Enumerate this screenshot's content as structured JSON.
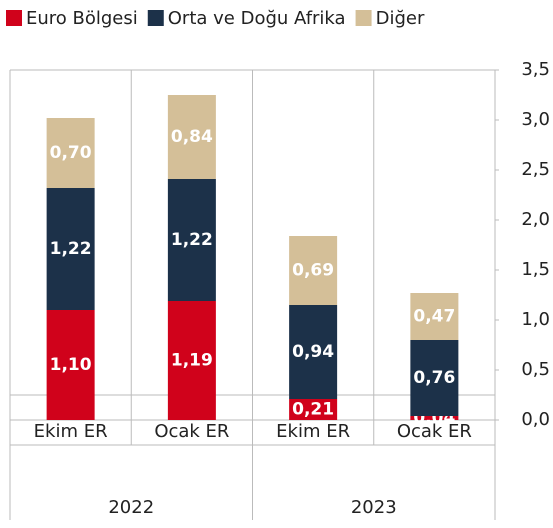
{
  "chart_data": {
    "type": "stacked_bar",
    "categories": [
      "Ekim ER",
      "Ocak ER",
      "Ekim ER",
      "Ocak ER"
    ],
    "groups": [
      {
        "name": "2022",
        "size": 2
      },
      {
        "name": "2023",
        "size": 2
      }
    ],
    "series": [
      {
        "name": "Euro Bölgesi",
        "color": "#d0021b",
        "values": [
          1.1,
          1.19,
          0.21,
          0.04
        ],
        "value_labels": [
          "1,10",
          "1,19",
          "0,21",
          "0,04"
        ]
      },
      {
        "name": "Orta ve Doğu Afrika",
        "color": "#1c3149",
        "values": [
          1.22,
          1.22,
          0.94,
          0.76
        ],
        "value_labels": [
          "1,22",
          "1,22",
          "0,94",
          "0,76"
        ]
      },
      {
        "name": "Diğer",
        "color": "#d4bf98",
        "values": [
          0.7,
          0.84,
          0.69,
          0.47
        ],
        "value_labels": [
          "0,70",
          "0,84",
          "0,69",
          "0,47"
        ]
      }
    ],
    "ylim": [
      0,
      3.5
    ],
    "yticks": [
      {
        "value": 0,
        "label": "0,0"
      },
      {
        "value": 0.5,
        "label": "0,5"
      },
      {
        "value": 1,
        "label": "1,0"
      },
      {
        "value": 1.5,
        "label": "1,5"
      },
      {
        "value": 2,
        "label": "2,0"
      },
      {
        "value": 2.5,
        "label": "2,5"
      },
      {
        "value": 3,
        "label": "3,0"
      },
      {
        "value": 3.5,
        "label": "3,5"
      }
    ],
    "grid": false,
    "legend": "top"
  }
}
